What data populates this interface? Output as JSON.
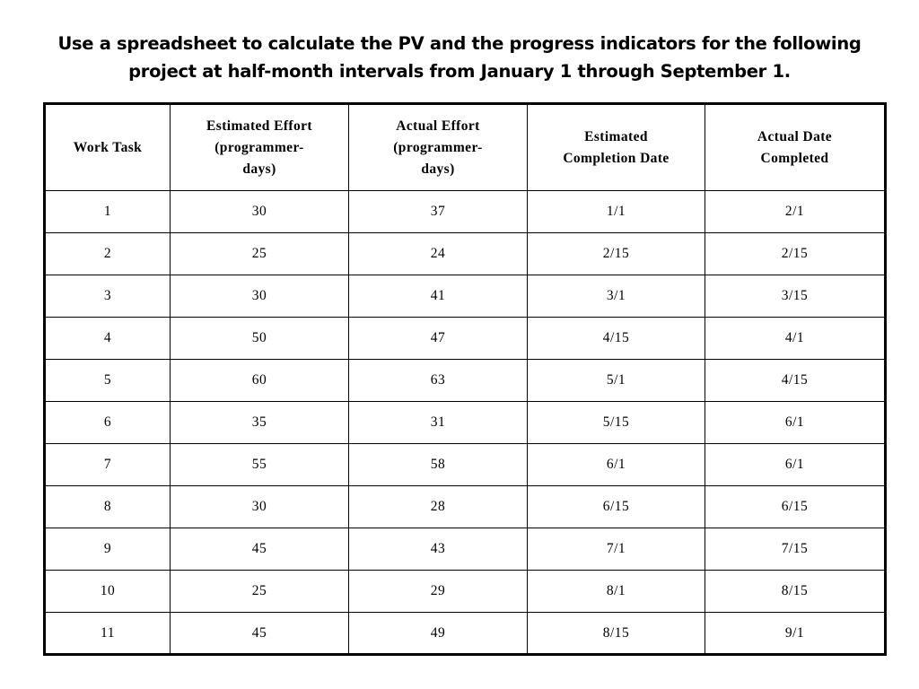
{
  "heading": {
    "line1": "Use a spreadsheet to calculate the PV and the progress indicators for the following",
    "line2": "project at half-month intervals from January 1 through September 1."
  },
  "table": {
    "headers": [
      {
        "lines": [
          "Work Task"
        ]
      },
      {
        "lines": [
          "Estimated Effort",
          "(programmer-",
          "days)"
        ]
      },
      {
        "lines": [
          "Actual Effort",
          "(programmer-",
          "days)"
        ]
      },
      {
        "lines": [
          "Estimated",
          "Completion Date"
        ]
      },
      {
        "lines": [
          "Actual Date",
          "Completed"
        ]
      }
    ],
    "rows": [
      {
        "task": "1",
        "estimated_effort": "30",
        "actual_effort": "37",
        "estimated_completion": "1/1",
        "actual_completed": "2/1"
      },
      {
        "task": "2",
        "estimated_effort": "25",
        "actual_effort": "24",
        "estimated_completion": "2/15",
        "actual_completed": "2/15"
      },
      {
        "task": "3",
        "estimated_effort": "30",
        "actual_effort": "41",
        "estimated_completion": "3/1",
        "actual_completed": "3/15"
      },
      {
        "task": "4",
        "estimated_effort": "50",
        "actual_effort": "47",
        "estimated_completion": "4/15",
        "actual_completed": "4/1"
      },
      {
        "task": "5",
        "estimated_effort": "60",
        "actual_effort": "63",
        "estimated_completion": "5/1",
        "actual_completed": "4/15"
      },
      {
        "task": "6",
        "estimated_effort": "35",
        "actual_effort": "31",
        "estimated_completion": "5/15",
        "actual_completed": "6/1"
      },
      {
        "task": "7",
        "estimated_effort": "55",
        "actual_effort": "58",
        "estimated_completion": "6/1",
        "actual_completed": "6/1"
      },
      {
        "task": "8",
        "estimated_effort": "30",
        "actual_effort": "28",
        "estimated_completion": "6/15",
        "actual_completed": "6/15"
      },
      {
        "task": "9",
        "estimated_effort": "45",
        "actual_effort": "43",
        "estimated_completion": "7/1",
        "actual_completed": "7/15"
      },
      {
        "task": "10",
        "estimated_effort": "25",
        "actual_effort": "29",
        "estimated_completion": "8/1",
        "actual_completed": "8/15"
      },
      {
        "task": "11",
        "estimated_effort": "45",
        "actual_effort": "49",
        "estimated_completion": "8/15",
        "actual_completed": "9/1"
      }
    ]
  }
}
